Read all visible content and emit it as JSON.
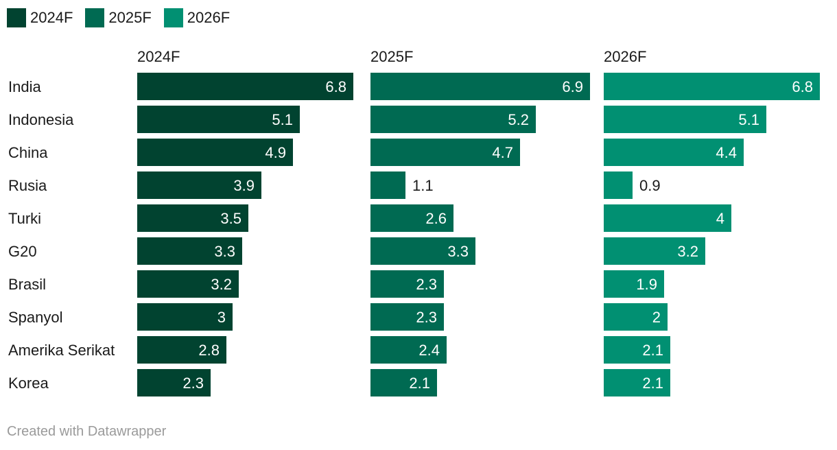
{
  "legend": {
    "items": [
      {
        "label": "2024F",
        "color": "#014330"
      },
      {
        "label": "2025F",
        "color": "#006a52"
      },
      {
        "label": "2026F",
        "color": "#019072"
      }
    ]
  },
  "chart_data": {
    "type": "bar",
    "orientation": "horizontal",
    "layout": "small-multiples",
    "categories": [
      "India",
      "Indonesia",
      "China",
      "Rusia",
      "Turki",
      "G20",
      "Brasil",
      "Spanyol",
      "Amerika Serikat",
      "Korea"
    ],
    "series": [
      {
        "name": "2024F",
        "color": "#014330",
        "values": [
          6.8,
          5.1,
          4.9,
          3.9,
          3.5,
          3.3,
          3.2,
          3,
          2.8,
          2.3
        ]
      },
      {
        "name": "2025F",
        "color": "#006a52",
        "values": [
          6.9,
          5.2,
          4.7,
          1.1,
          2.6,
          3.3,
          2.3,
          2.3,
          2.4,
          2.1
        ]
      },
      {
        "name": "2026F",
        "color": "#019072",
        "values": [
          6.8,
          5.1,
          4.4,
          0.9,
          4,
          3.2,
          1.9,
          2,
          2.1,
          2.1
        ]
      }
    ],
    "xlim": [
      0,
      6.9
    ]
  },
  "footer": {
    "credit": "Created with Datawrapper"
  }
}
